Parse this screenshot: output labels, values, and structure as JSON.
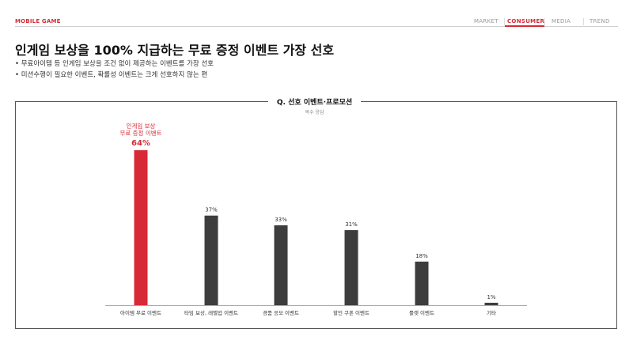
{
  "header": {
    "brand": "MOBILE GAME",
    "nav": [
      {
        "label": "MARKET",
        "active": false
      },
      {
        "label": "CONSUMER",
        "active": true
      },
      {
        "label": "MEDIA",
        "active": false
      },
      {
        "label": "TREND",
        "active": false
      }
    ]
  },
  "title": "인게임 보상을 100% 지급하는 무료 증정 이벤트 가장 선호",
  "bullets": [
    "• 무료아이템 등 인게임 보상을 조건 없이 제공하는 이벤트를 가장 선호",
    "• 미션수행이 필요한 이벤트, 확률성 이벤트는 크게 선호하지 않는 편"
  ],
  "question": "Q. 선호 이벤트·프로모션",
  "note": "복수 응답",
  "colors": {
    "accent": "#d62b36",
    "bar": "#3d3d3d",
    "highlight_bar": "#d62b36"
  },
  "chart_data": {
    "type": "bar",
    "categories": [
      "아이템 무료 이벤트",
      "타임 보상, 레벨업 이벤트",
      "경품 응모 이벤트",
      "할인 쿠폰 이벤트",
      "룰렛 이벤트",
      "기타"
    ],
    "values": [
      64,
      37,
      33,
      31,
      18,
      1
    ],
    "value_labels": [
      "64%",
      "37%",
      "33%",
      "31%",
      "18%",
      "1%"
    ],
    "unit": "%",
    "highlight_index": 0,
    "highlight_annotation": [
      "인게임 보상",
      "무료 증정 이벤트"
    ],
    "ylim": [
      0,
      64
    ],
    "grid": false,
    "legend": "none"
  }
}
